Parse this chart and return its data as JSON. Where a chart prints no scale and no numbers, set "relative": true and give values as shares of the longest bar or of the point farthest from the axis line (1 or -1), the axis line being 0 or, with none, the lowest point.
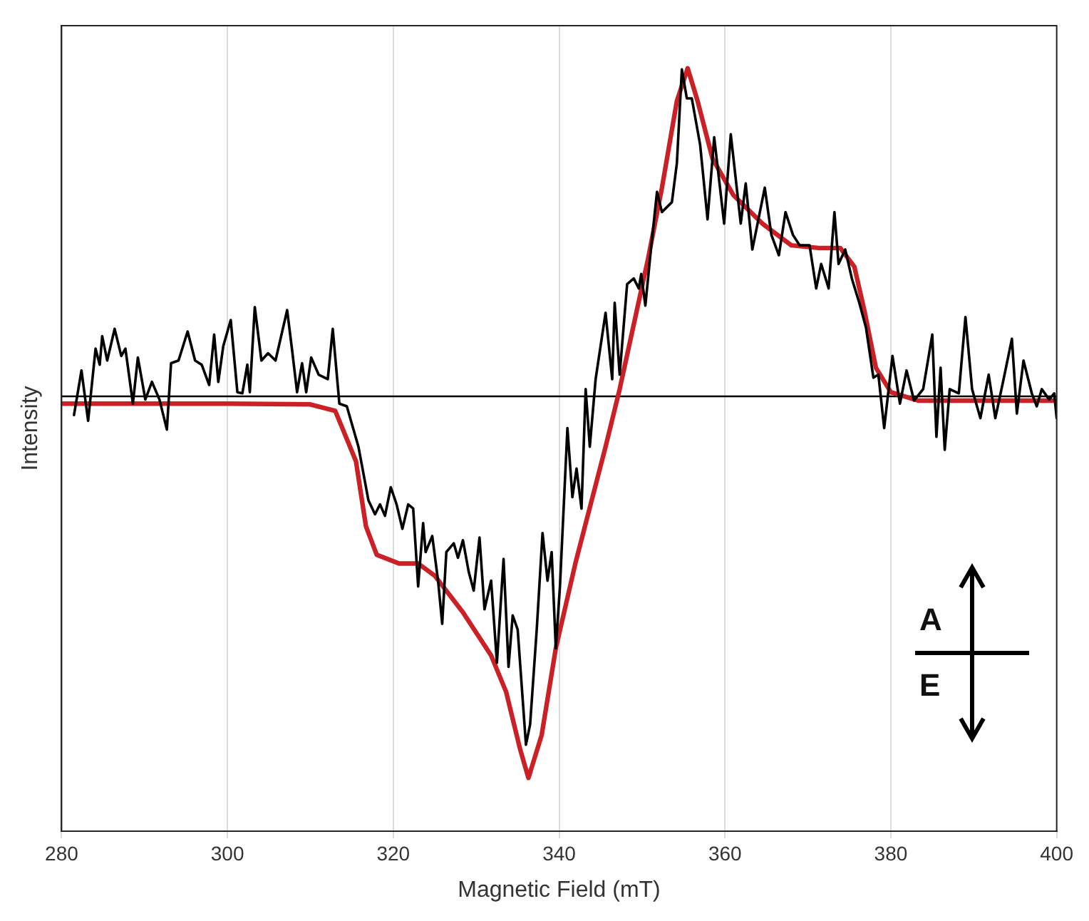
{
  "chart_data": {
    "type": "line",
    "xlabel": "Magnetic Field (mT)",
    "ylabel": "Intensity",
    "relative": true,
    "xlim": [
      280,
      400
    ],
    "xticks": [
      280,
      300,
      320,
      340,
      360,
      380,
      400
    ],
    "grid": "x",
    "marker": "none",
    "line_style": "solid",
    "ref_lines": [
      {
        "axis": "y",
        "value": 0,
        "color": "#000000"
      }
    ],
    "annotations": [
      "A",
      "E"
    ],
    "series": [
      {
        "color": "#cc2027",
        "x": [
          280,
          300,
          310,
          313,
          315.5,
          316.7,
          318,
          320.7,
          323,
          325,
          328.4,
          331.8,
          333.6,
          335.3,
          336.3,
          337.9,
          339.6,
          342,
          345.6,
          347.3,
          350.7,
          352.4,
          354.2,
          355.5,
          356.7,
          358.5,
          361,
          364.5,
          368,
          371.3,
          373.9,
          375.6,
          376.8,
          378.2,
          380,
          383.3,
          400
        ],
        "values": [
          -0.019,
          -0.019,
          -0.021,
          -0.038,
          -0.17,
          -0.34,
          -0.415,
          -0.438,
          -0.438,
          -0.47,
          -0.566,
          -0.679,
          -0.774,
          -0.925,
          -1,
          -0.887,
          -0.66,
          -0.434,
          -0.132,
          0.019,
          0.358,
          0.547,
          0.774,
          0.86,
          0.774,
          0.623,
          0.528,
          0.453,
          0.396,
          0.389,
          0.389,
          0.34,
          0.226,
          0.075,
          0.011,
          -0.011,
          -0.011
        ]
      },
      {
        "color": "#000000",
        "x": [
          281.5,
          282.4,
          283.2,
          284.1,
          284.6,
          284.9,
          285.5,
          286.4,
          287.2,
          287.7,
          288.6,
          289.2,
          290.1,
          290.9,
          291.8,
          292.7,
          293.2,
          294.1,
          295.2,
          296.1,
          296.9,
          297.8,
          298.4,
          298.9,
          299.5,
          300.4,
          301.2,
          301.8,
          302.4,
          302.7,
          303.3,
          304.1,
          304.9,
          305.8,
          307.2,
          307.8,
          308.4,
          309,
          309.5,
          310.1,
          311,
          312.1,
          312.7,
          313.5,
          314.4,
          315.8,
          317,
          317.8,
          318.4,
          319,
          319.7,
          320.4,
          321.1,
          321.8,
          322.4,
          323,
          323.6,
          323.9,
          324.7,
          325.4,
          325.9,
          326.4,
          327.3,
          327.8,
          328.4,
          329.1,
          329.7,
          330.4,
          331,
          331.8,
          332.5,
          333.3,
          333.9,
          334.4,
          335,
          336,
          336.5,
          337.3,
          338,
          338.6,
          339.1,
          339.6,
          340.1,
          341,
          341.6,
          342.1,
          342.7,
          343.2,
          343.7,
          344.4,
          345.6,
          346.4,
          346.7,
          347.3,
          348.2,
          349,
          349.6,
          349.9,
          350.4,
          351,
          351.8,
          352.4,
          353.6,
          354.2,
          354.8,
          355.4,
          356,
          357,
          357.9,
          358.7,
          359.9,
          360.7,
          361.9,
          362.5,
          363.3,
          364.8,
          365.6,
          366.5,
          367.3,
          368.2,
          369,
          370.2,
          371,
          371.6,
          372.5,
          373.2,
          373.7,
          374.5,
          375.3,
          376.2,
          377,
          377.9,
          378.5,
          379.2,
          380.2,
          381.1,
          381.9,
          382.8,
          383.9,
          385,
          385.5,
          386,
          386.5,
          387.1,
          388.2,
          389,
          389.8,
          390.8,
          391.8,
          392.6,
          393.6,
          394.6,
          395.2,
          396,
          397,
          397.6,
          398.2,
          399.1,
          399.7,
          400
        ],
        "values": [
          -0.049,
          0.068,
          -0.064,
          0.125,
          0.083,
          0.158,
          0.094,
          0.177,
          0.106,
          0.125,
          -0.019,
          0.102,
          -0.008,
          0.038,
          -0.008,
          -0.087,
          0.087,
          0.094,
          0.17,
          0.094,
          0.083,
          0.03,
          0.162,
          0.038,
          0.132,
          0.2,
          0.011,
          0.008,
          0.083,
          0.011,
          0.234,
          0.094,
          0.113,
          0.094,
          0.226,
          0.121,
          0.011,
          0.087,
          0.011,
          0.102,
          0.057,
          0.045,
          0.177,
          -0.019,
          -0.026,
          -0.132,
          -0.272,
          -0.309,
          -0.283,
          -0.313,
          -0.238,
          -0.283,
          -0.347,
          -0.283,
          -0.294,
          -0.498,
          -0.332,
          -0.408,
          -0.366,
          -0.483,
          -0.596,
          -0.408,
          -0.385,
          -0.423,
          -0.377,
          -0.46,
          -0.509,
          -0.37,
          -0.558,
          -0.483,
          -0.698,
          -0.426,
          -0.709,
          -0.574,
          -0.611,
          -0.913,
          -0.86,
          -0.611,
          -0.358,
          -0.483,
          -0.408,
          -0.66,
          -0.498,
          -0.083,
          -0.264,
          -0.189,
          -0.294,
          0.019,
          -0.132,
          0.045,
          0.219,
          0.045,
          0.245,
          0.057,
          0.294,
          0.309,
          0.283,
          0.321,
          0.238,
          0.37,
          0.536,
          0.483,
          0.509,
          0.611,
          0.857,
          0.781,
          0.781,
          0.66,
          0.464,
          0.679,
          0.453,
          0.687,
          0.453,
          0.558,
          0.385,
          0.547,
          0.423,
          0.37,
          0.483,
          0.423,
          0.396,
          0.396,
          0.283,
          0.347,
          0.283,
          0.483,
          0.347,
          0.385,
          0.309,
          0.245,
          0.181,
          0.049,
          0.057,
          -0.083,
          0.106,
          -0.019,
          0.068,
          -0.011,
          0.019,
          0.162,
          -0.106,
          0.075,
          -0.14,
          0.019,
          0.008,
          0.208,
          0.019,
          -0.057,
          0.057,
          -0.057,
          0.045,
          0.151,
          -0.045,
          0.094,
          0.008,
          -0.026,
          0.019,
          -0.008,
          0.008,
          -0.057
        ]
      }
    ]
  }
}
